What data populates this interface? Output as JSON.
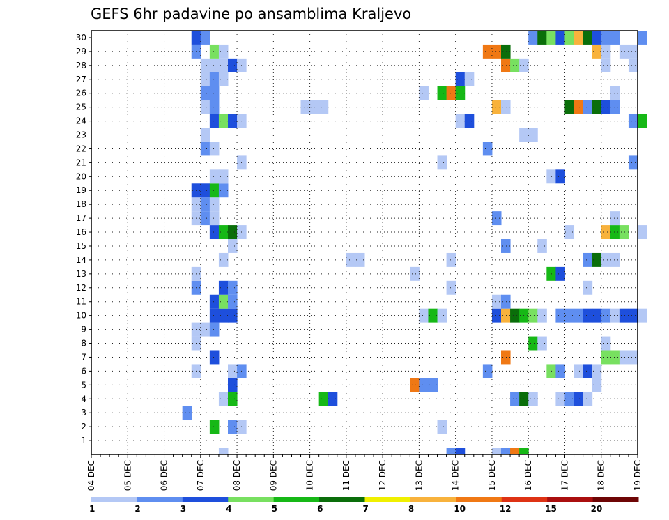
{
  "chart_data": {
    "type": "heatmap",
    "title": "GEFS 6hr padavine po ansamblima Kraljevo",
    "xlabel": "",
    "ylabel": "",
    "x_ticks": [
      "04 DEC",
      "05 DEC",
      "06 DEC",
      "07 DEC",
      "08 DEC",
      "09 DEC",
      "10 DEC",
      "11 DEC",
      "12 DEC",
      "13 DEC",
      "14 DEC",
      "15 DEC",
      "16 DEC",
      "17 DEC",
      "18 DEC",
      "19 DEC"
    ],
    "y_ticks": [
      "1",
      "2",
      "3",
      "4",
      "5",
      "6",
      "7",
      "8",
      "9",
      "10",
      "11",
      "12",
      "13",
      "14",
      "15",
      "16",
      "17",
      "18",
      "19",
      "20",
      "21",
      "22",
      "23",
      "24",
      "25",
      "26",
      "27",
      "28",
      "29",
      "30"
    ],
    "x_range": [
      "04 DEC 00Z",
      "19 DEC 00Z"
    ],
    "time_step_hours": 6,
    "member_range": [
      0,
      30
    ],
    "grid": true,
    "legend": {
      "placement": "bottom",
      "labels": [
        "1",
        "2",
        "3",
        "4",
        "5",
        "6",
        "7",
        "8",
        "10",
        "12",
        "15",
        "20"
      ],
      "colors": [
        "#b4c8f5",
        "#5f8ef0",
        "#1e4fdc",
        "#78e060",
        "#16b816",
        "#0a6e0a",
        "#f0f000",
        "#f8b23c",
        "#f07814",
        "#de3214",
        "#aa0f0f",
        "#6e0505"
      ]
    },
    "cells": [
      [
        0,
        "07 DEC 12Z",
        1
      ],
      [
        0,
        "13 DEC 18Z",
        2
      ],
      [
        0,
        "14 DEC 00Z",
        3
      ],
      [
        0,
        "15 DEC 00Z",
        1
      ],
      [
        0,
        "15 DEC 06Z",
        2
      ],
      [
        0,
        "15 DEC 12Z",
        11
      ],
      [
        0,
        "15 DEC 18Z",
        5
      ],
      [
        2,
        "07 DEC 06Z",
        5
      ],
      [
        2,
        "07 DEC 18Z",
        2
      ],
      [
        2,
        "08 DEC 00Z",
        1
      ],
      [
        2,
        "13 DEC 12Z",
        1
      ],
      [
        3,
        "06 DEC 12Z",
        2
      ],
      [
        4,
        "07 DEC 12Z",
        1
      ],
      [
        4,
        "07 DEC 18Z",
        5
      ],
      [
        4,
        "10 DEC 06Z",
        5
      ],
      [
        4,
        "10 DEC 12Z",
        3
      ],
      [
        4,
        "15 DEC 12Z",
        2
      ],
      [
        4,
        "15 DEC 18Z",
        6
      ],
      [
        4,
        "16 DEC 00Z",
        1
      ],
      [
        4,
        "16 DEC 18Z",
        1
      ],
      [
        4,
        "17 DEC 00Z",
        2
      ],
      [
        4,
        "17 DEC 06Z",
        3
      ],
      [
        4,
        "17 DEC 12Z",
        1
      ],
      [
        5,
        "07 DEC 18Z",
        3
      ],
      [
        5,
        "12 DEC 18Z",
        11
      ],
      [
        5,
        "13 DEC 00Z",
        2
      ],
      [
        5,
        "13 DEC 06Z",
        2
      ],
      [
        5,
        "17 DEC 18Z",
        1
      ],
      [
        6,
        "06 DEC 18Z",
        1
      ],
      [
        6,
        "07 DEC 18Z",
        1
      ],
      [
        6,
        "08 DEC 00Z",
        2
      ],
      [
        6,
        "14 DEC 18Z",
        2
      ],
      [
        6,
        "16 DEC 12Z",
        4
      ],
      [
        6,
        "16 DEC 18Z",
        2
      ],
      [
        6,
        "17 DEC 06Z",
        1
      ],
      [
        6,
        "17 DEC 12Z",
        3
      ],
      [
        6,
        "17 DEC 18Z",
        1
      ],
      [
        7,
        "07 DEC 06Z",
        3
      ],
      [
        7,
        "15 DEC 06Z",
        11
      ],
      [
        7,
        "18 DEC 00Z",
        4
      ],
      [
        7,
        "18 DEC 06Z",
        4
      ],
      [
        7,
        "18 DEC 12Z",
        1
      ],
      [
        7,
        "18 DEC 18Z",
        1
      ],
      [
        8,
        "06 DEC 18Z",
        1
      ],
      [
        8,
        "16 DEC 00Z",
        5
      ],
      [
        8,
        "16 DEC 06Z",
        1
      ],
      [
        8,
        "18 DEC 00Z",
        1
      ],
      [
        9,
        "06 DEC 18Z",
        1
      ],
      [
        9,
        "07 DEC 00Z",
        1
      ],
      [
        9,
        "07 DEC 06Z",
        2
      ],
      [
        10,
        "07 DEC 06Z",
        3
      ],
      [
        10,
        "07 DEC 12Z",
        3
      ],
      [
        10,
        "07 DEC 18Z",
        3
      ],
      [
        10,
        "13 DEC 00Z",
        1
      ],
      [
        10,
        "13 DEC 06Z",
        5
      ],
      [
        10,
        "13 DEC 12Z",
        1
      ],
      [
        10,
        "15 DEC 00Z",
        3
      ],
      [
        10,
        "15 DEC 06Z",
        8
      ],
      [
        10,
        "15 DEC 12Z",
        6
      ],
      [
        10,
        "15 DEC 18Z",
        5
      ],
      [
        10,
        "16 DEC 00Z",
        4
      ],
      [
        10,
        "16 DEC 06Z",
        1
      ],
      [
        10,
        "16 DEC 18Z",
        2
      ],
      [
        10,
        "17 DEC 00Z",
        2
      ],
      [
        10,
        "17 DEC 06Z",
        2
      ],
      [
        10,
        "17 DEC 12Z",
        3
      ],
      [
        10,
        "17 DEC 18Z",
        3
      ],
      [
        10,
        "18 DEC 00Z",
        2
      ],
      [
        10,
        "18 DEC 06Z",
        1
      ],
      [
        10,
        "18 DEC 12Z",
        3
      ],
      [
        10,
        "18 DEC 18Z",
        3
      ],
      [
        10,
        "19 DEC 00Z",
        1
      ],
      [
        11,
        "07 DEC 06Z",
        3
      ],
      [
        11,
        "07 DEC 12Z",
        4
      ],
      [
        11,
        "07 DEC 18Z",
        2
      ],
      [
        11,
        "15 DEC 00Z",
        1
      ],
      [
        11,
        "15 DEC 06Z",
        2
      ],
      [
        12,
        "06 DEC 18Z",
        2
      ],
      [
        12,
        "07 DEC 12Z",
        3
      ],
      [
        12,
        "07 DEC 18Z",
        2
      ],
      [
        12,
        "13 DEC 18Z",
        1
      ],
      [
        12,
        "17 DEC 12Z",
        1
      ],
      [
        13,
        "06 DEC 18Z",
        1
      ],
      [
        13,
        "12 DEC 18Z",
        1
      ],
      [
        13,
        "16 DEC 12Z",
        5
      ],
      [
        13,
        "16 DEC 18Z",
        3
      ],
      [
        14,
        "07 DEC 12Z",
        1
      ],
      [
        14,
        "11 DEC 00Z",
        1
      ],
      [
        14,
        "11 DEC 06Z",
        1
      ],
      [
        14,
        "13 DEC 18Z",
        1
      ],
      [
        14,
        "17 DEC 12Z",
        2
      ],
      [
        14,
        "17 DEC 18Z",
        6
      ],
      [
        14,
        "18 DEC 00Z",
        1
      ],
      [
        14,
        "18 DEC 06Z",
        1
      ],
      [
        15,
        "07 DEC 18Z",
        1
      ],
      [
        15,
        "15 DEC 06Z",
        2
      ],
      [
        15,
        "16 DEC 06Z",
        1
      ],
      [
        16,
        "07 DEC 06Z",
        3
      ],
      [
        16,
        "07 DEC 12Z",
        5
      ],
      [
        16,
        "07 DEC 18Z",
        6
      ],
      [
        16,
        "08 DEC 00Z",
        1
      ],
      [
        16,
        "17 DEC 00Z",
        1
      ],
      [
        16,
        "18 DEC 00Z",
        9
      ],
      [
        16,
        "18 DEC 06Z",
        5
      ],
      [
        16,
        "18 DEC 12Z",
        4
      ],
      [
        16,
        "19 DEC 00Z",
        1
      ],
      [
        17,
        "06 DEC 18Z",
        1
      ],
      [
        17,
        "07 DEC 00Z",
        2
      ],
      [
        17,
        "07 DEC 06Z",
        1
      ],
      [
        17,
        "15 DEC 00Z",
        2
      ],
      [
        17,
        "18 DEC 06Z",
        1
      ],
      [
        18,
        "06 DEC 18Z",
        1
      ],
      [
        18,
        "07 DEC 00Z",
        2
      ],
      [
        18,
        "07 DEC 06Z",
        1
      ],
      [
        19,
        "06 DEC 18Z",
        3
      ],
      [
        19,
        "07 DEC 00Z",
        3
      ],
      [
        19,
        "07 DEC 06Z",
        5
      ],
      [
        19,
        "07 DEC 12Z",
        2
      ],
      [
        20,
        "07 DEC 06Z",
        1
      ],
      [
        20,
        "07 DEC 12Z",
        1
      ],
      [
        20,
        "16 DEC 12Z",
        1
      ],
      [
        20,
        "16 DEC 18Z",
        3
      ],
      [
        21,
        "08 DEC 00Z",
        1
      ],
      [
        21,
        "13 DEC 12Z",
        1
      ],
      [
        21,
        "18 DEC 18Z",
        2
      ],
      [
        22,
        "07 DEC 00Z",
        2
      ],
      [
        22,
        "07 DEC 06Z",
        1
      ],
      [
        22,
        "14 DEC 18Z",
        2
      ],
      [
        23,
        "07 DEC 00Z",
        1
      ],
      [
        23,
        "15 DEC 18Z",
        1
      ],
      [
        23,
        "16 DEC 00Z",
        1
      ],
      [
        24,
        "07 DEC 06Z",
        3
      ],
      [
        24,
        "07 DEC 12Z",
        4
      ],
      [
        24,
        "07 DEC 18Z",
        3
      ],
      [
        24,
        "08 DEC 00Z",
        1
      ],
      [
        24,
        "14 DEC 00Z",
        1
      ],
      [
        24,
        "14 DEC 06Z",
        3
      ],
      [
        24,
        "18 DEC 18Z",
        2
      ],
      [
        24,
        "19 DEC 00Z",
        5
      ],
      [
        25,
        "07 DEC 00Z",
        1
      ],
      [
        25,
        "07 DEC 06Z",
        2
      ],
      [
        25,
        "09 DEC 18Z",
        1
      ],
      [
        25,
        "10 DEC 00Z",
        1
      ],
      [
        25,
        "10 DEC 06Z",
        1
      ],
      [
        25,
        "15 DEC 00Z",
        9
      ],
      [
        25,
        "15 DEC 06Z",
        1
      ],
      [
        25,
        "17 DEC 00Z",
        6
      ],
      [
        25,
        "17 DEC 06Z",
        11
      ],
      [
        25,
        "17 DEC 12Z",
        2
      ],
      [
        25,
        "17 DEC 18Z",
        6
      ],
      [
        25,
        "18 DEC 00Z",
        3
      ],
      [
        25,
        "18 DEC 06Z",
        2
      ],
      [
        26,
        "07 DEC 00Z",
        2
      ],
      [
        26,
        "07 DEC 06Z",
        2
      ],
      [
        26,
        "13 DEC 00Z",
        1
      ],
      [
        26,
        "13 DEC 12Z",
        5
      ],
      [
        26,
        "13 DEC 18Z",
        10
      ],
      [
        26,
        "14 DEC 00Z",
        5
      ],
      [
        26,
        "18 DEC 06Z",
        1
      ],
      [
        27,
        "07 DEC 00Z",
        1
      ],
      [
        27,
        "07 DEC 06Z",
        2
      ],
      [
        27,
        "07 DEC 12Z",
        1
      ],
      [
        27,
        "14 DEC 00Z",
        3
      ],
      [
        27,
        "14 DEC 06Z",
        1
      ],
      [
        28,
        "07 DEC 00Z",
        1
      ],
      [
        28,
        "07 DEC 06Z",
        1
      ],
      [
        28,
        "07 DEC 12Z",
        1
      ],
      [
        28,
        "07 DEC 18Z",
        3
      ],
      [
        28,
        "08 DEC 00Z",
        1
      ],
      [
        28,
        "15 DEC 06Z",
        10
      ],
      [
        28,
        "15 DEC 12Z",
        4
      ],
      [
        28,
        "15 DEC 18Z",
        1
      ],
      [
        28,
        "18 DEC 00Z",
        1
      ],
      [
        28,
        "18 DEC 18Z",
        1
      ],
      [
        29,
        "06 DEC 18Z",
        2
      ],
      [
        29,
        "07 DEC 06Z",
        4
      ],
      [
        29,
        "07 DEC 12Z",
        1
      ],
      [
        29,
        "14 DEC 18Z",
        10
      ],
      [
        29,
        "15 DEC 00Z",
        11
      ],
      [
        29,
        "15 DEC 06Z",
        6
      ],
      [
        29,
        "17 DEC 18Z",
        9
      ],
      [
        29,
        "18 DEC 00Z",
        1
      ],
      [
        29,
        "18 DEC 12Z",
        1
      ],
      [
        29,
        "18 DEC 18Z",
        1
      ],
      [
        30,
        "06 DEC 18Z",
        3
      ],
      [
        30,
        "07 DEC 00Z",
        2
      ],
      [
        30,
        "16 DEC 00Z",
        2
      ],
      [
        30,
        "16 DEC 06Z",
        6
      ],
      [
        30,
        "16 DEC 12Z",
        4
      ],
      [
        30,
        "16 DEC 18Z",
        3
      ],
      [
        30,
        "17 DEC 00Z",
        4
      ],
      [
        30,
        "17 DEC 06Z",
        8
      ],
      [
        30,
        "17 DEC 12Z",
        6
      ],
      [
        30,
        "17 DEC 18Z",
        3
      ],
      [
        30,
        "18 DEC 00Z",
        2
      ],
      [
        30,
        "18 DEC 06Z",
        2
      ],
      [
        30,
        "19 DEC 00Z",
        2
      ]
    ]
  }
}
